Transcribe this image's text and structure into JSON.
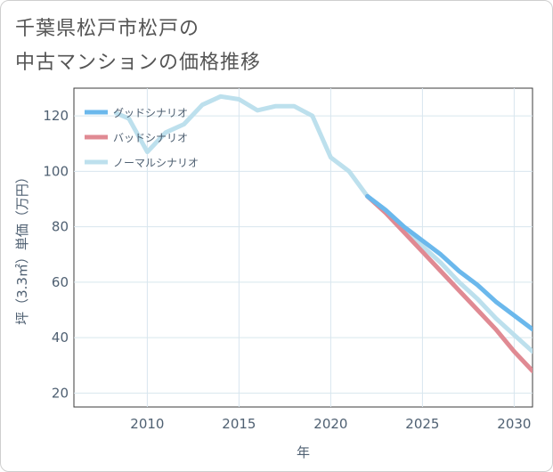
{
  "title_lines": [
    "千葉県松戸市松戸の",
    "中古マンションの価格推移"
  ],
  "chart_data": {
    "type": "line",
    "title": "千葉県松戸市松戸の中古マンションの価格推移",
    "xlabel": "年",
    "ylabel": "坪（3.3㎡）単価（万円）",
    "xlim": [
      2006,
      2031
    ],
    "ylim": [
      15,
      130
    ],
    "xticks": [
      2010,
      2015,
      2020,
      2025,
      2030
    ],
    "yticks": [
      20,
      40,
      60,
      80,
      100,
      120
    ],
    "legend_position": "top-left",
    "series": [
      {
        "name": "ノーマルシナリオ",
        "color": "#bde0ed",
        "x": [
          2008.3,
          2009,
          2010,
          2011,
          2012,
          2013,
          2014,
          2015,
          2016,
          2017,
          2018,
          2019,
          2020,
          2021,
          2022,
          2023,
          2024,
          2025,
          2026,
          2027,
          2028,
          2029,
          2030,
          2031
        ],
        "y": [
          121,
          119,
          107,
          114,
          117,
          124,
          127,
          126,
          122,
          123.5,
          123.5,
          120,
          105,
          100,
          91,
          86,
          79,
          73,
          67,
          60,
          54,
          47,
          41,
          35
        ]
      },
      {
        "name": "バッドシナリオ",
        "color": "#e08a93",
        "x": [
          2022,
          2023,
          2024,
          2025,
          2026,
          2027,
          2028,
          2029,
          2030,
          2031
        ],
        "y": [
          91,
          85,
          78,
          71,
          64,
          57,
          50,
          43,
          35,
          28
        ]
      },
      {
        "name": "グッドシナリオ",
        "color": "#6bb8ec",
        "x": [
          2022,
          2023,
          2024,
          2025,
          2026,
          2027,
          2028,
          2029,
          2030,
          2031
        ],
        "y": [
          91,
          86,
          80,
          75,
          70,
          64,
          59,
          53,
          48,
          43
        ]
      }
    ],
    "legend_order": [
      "グッドシナリオ",
      "バッドシナリオ",
      "ノーマルシナリオ"
    ]
  }
}
